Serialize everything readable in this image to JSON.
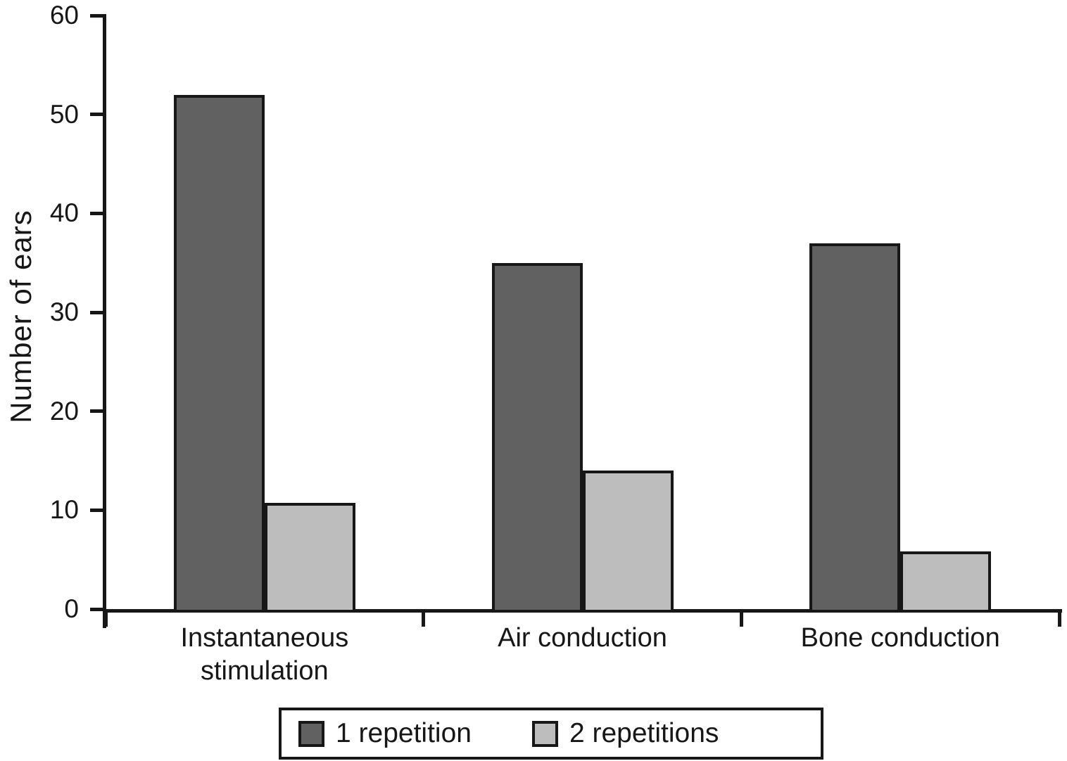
{
  "chart_data": {
    "type": "bar",
    "title": "",
    "xlabel": "",
    "ylabel": "Number of ears",
    "ylim": [
      0,
      60
    ],
    "yticks": [
      0,
      10,
      20,
      30,
      40,
      50,
      60
    ],
    "grid": false,
    "legend_position": "bottom",
    "categories": [
      "Instantaneous stimulation",
      "Air conduction",
      "Bone conduction"
    ],
    "series": [
      {
        "name": "1 repetition",
        "color": "#616161",
        "values": [
          52,
          35,
          37
        ]
      },
      {
        "name": "2 repetitions",
        "color": "#bdbdbd",
        "values": [
          10.7,
          14,
          5.8
        ]
      }
    ],
    "colors": {
      "bar_border": "#171717",
      "axis": "#171717",
      "text": "#171717",
      "background": "#ffffff"
    }
  }
}
